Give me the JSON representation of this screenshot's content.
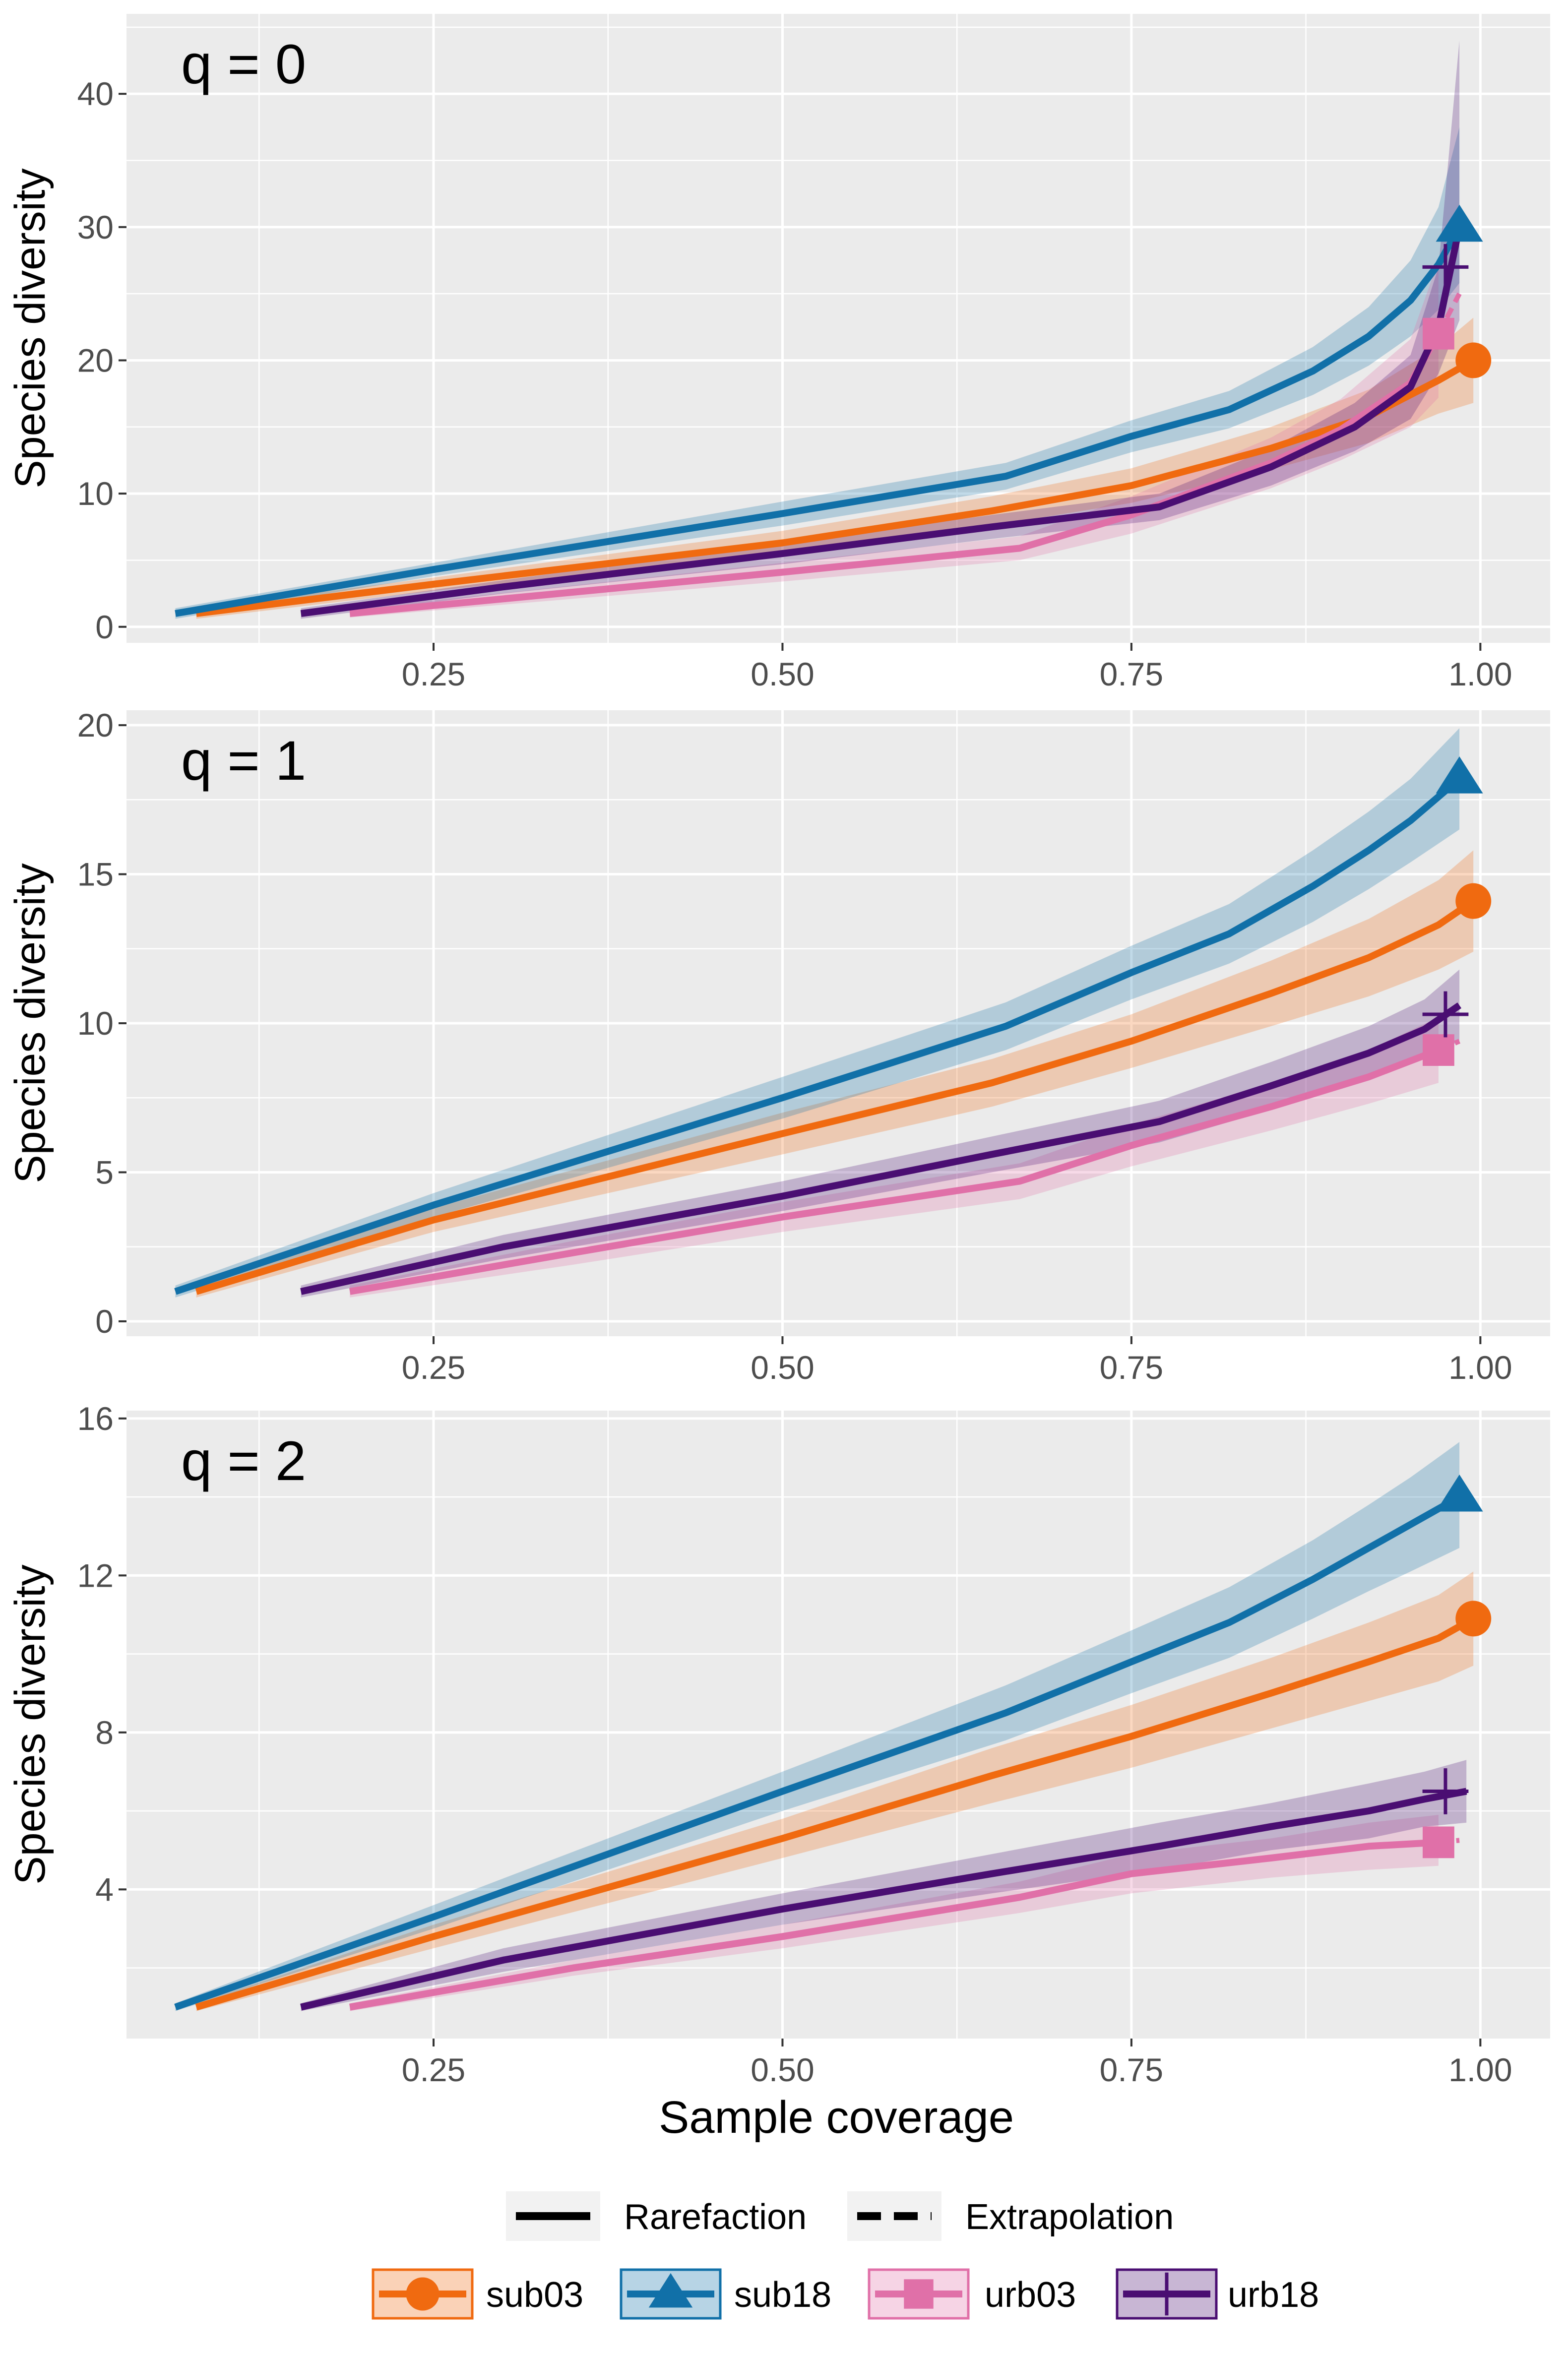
{
  "chart_data": {
    "type": "line",
    "x_label": "Sample coverage",
    "y_label": "Species diversity",
    "x_ticks": [
      "0.25",
      "0.50",
      "0.75",
      "1.00"
    ],
    "x_tick_values": [
      0.25,
      0.5,
      0.75,
      1.0
    ],
    "xlim": [
      0.03,
      1.05
    ],
    "legend_linetype": {
      "rarefaction": "Rarefaction",
      "extrapolation": "Extrapolation"
    },
    "legend_sites": [
      "sub03",
      "sub18",
      "urb03",
      "urb18"
    ],
    "colors": {
      "sub03": "#F06A10",
      "sub18": "#1170A8",
      "urb03": "#E070A8",
      "urb18": "#4A0E72"
    },
    "markers": {
      "sub03": "circle",
      "sub18": "triangle",
      "urb03": "square",
      "urb18": "plus"
    },
    "panels": [
      {
        "label": "q = 0",
        "ylim": [
          -1.2,
          46
        ],
        "y_ticks": [
          "0",
          "10",
          "20",
          "30",
          "40"
        ],
        "y_tick_values": [
          0,
          10,
          20,
          30,
          40
        ],
        "series": [
          {
            "name": "sub03",
            "x": [
              0.08,
              0.25,
              0.5,
              0.65,
              0.75,
              0.85,
              0.92,
              0.97,
              0.995
            ],
            "y": [
              1,
              3.2,
              6.3,
              8.7,
              10.6,
              13.4,
              15.8,
              18.5,
              20
            ],
            "lower": [
              0.6,
              2.7,
              5.4,
              7.6,
              9.3,
              11.8,
              13.8,
              16.0,
              16.8
            ],
            "upper": [
              1.4,
              3.7,
              7.2,
              9.8,
              11.9,
              15.0,
              17.8,
              21.0,
              23.2
            ],
            "ext_x": [],
            "ext_y": [],
            "point": [
              0.995,
              20
            ]
          },
          {
            "name": "sub18",
            "x": [
              0.065,
              0.25,
              0.5,
              0.66,
              0.75,
              0.82,
              0.88,
              0.92,
              0.95,
              0.97,
              0.985
            ],
            "y": [
              1,
              4.3,
              8.5,
              11.3,
              14.3,
              16.3,
              19.2,
              21.8,
              24.5,
              27.2,
              30
            ],
            "lower": [
              0.6,
              3.8,
              7.6,
              10.3,
              13.1,
              14.9,
              17.4,
              19.6,
              21.8,
              23.8,
              25.8
            ],
            "upper": [
              1.4,
              4.8,
              9.4,
              12.3,
              15.5,
              17.7,
              21.0,
              24.0,
              27.5,
              31.5,
              37.5
            ],
            "ext_x": [],
            "ext_y": [],
            "point": [
              0.985,
              30
            ]
          },
          {
            "name": "urb03",
            "x": [
              0.19,
              0.35,
              0.5,
              0.67,
              0.75,
              0.85,
              0.9,
              0.95,
              0.97
            ],
            "y": [
              1,
              2.6,
              4.1,
              5.9,
              8.4,
              12.3,
              14.8,
              18.3,
              22
            ],
            "lower": [
              0.7,
              2.1,
              3.4,
              5.0,
              7.0,
              10.4,
              12.5,
              15.0,
              17.2
            ],
            "upper": [
              1.3,
              3.1,
              4.8,
              6.8,
              9.8,
              14.2,
              17.1,
              21.6,
              27.5
            ],
            "ext_x": [
              0.97,
              0.985
            ],
            "ext_y": [
              22,
              25
            ],
            "point": [
              0.97,
              22
            ]
          },
          {
            "name": "urb18",
            "x": [
              0.155,
              0.3,
              0.5,
              0.65,
              0.77,
              0.85,
              0.91,
              0.95,
              0.97,
              0.985
            ],
            "y": [
              1,
              3.0,
              5.5,
              7.5,
              9,
              12,
              15,
              18,
              22.5,
              30
            ],
            "lower": [
              0.6,
              2.5,
              4.7,
              6.6,
              8.0,
              10.6,
              13.2,
              15.6,
              19.0,
              23.0
            ],
            "upper": [
              1.4,
              3.5,
              6.3,
              8.4,
              10.0,
              13.4,
              16.8,
              20.4,
              27.0,
              44.0
            ],
            "ext_x": [],
            "ext_y": [],
            "point": [
              0.975,
              27
            ]
          }
        ]
      },
      {
        "label": "q = 1",
        "ylim": [
          -0.5,
          20.5
        ],
        "y_ticks": [
          "0",
          "5",
          "10",
          "15",
          "20"
        ],
        "y_tick_values": [
          0,
          5,
          10,
          15,
          20
        ],
        "series": [
          {
            "name": "sub03",
            "x": [
              0.08,
              0.25,
              0.5,
              0.65,
              0.75,
              0.85,
              0.92,
              0.97,
              0.995
            ],
            "y": [
              1,
              3.4,
              6.3,
              8.0,
              9.4,
              11.0,
              12.2,
              13.3,
              14.1
            ],
            "lower": [
              0.8,
              3.0,
              5.6,
              7.2,
              8.5,
              9.9,
              10.9,
              11.8,
              12.4
            ],
            "upper": [
              1.2,
              3.8,
              7.0,
              8.8,
              10.3,
              12.1,
              13.5,
              14.8,
              15.8
            ],
            "ext_x": [],
            "ext_y": [],
            "point": [
              0.995,
              14.1
            ]
          },
          {
            "name": "sub18",
            "x": [
              0.065,
              0.25,
              0.5,
              0.66,
              0.75,
              0.82,
              0.88,
              0.92,
              0.95,
              0.985
            ],
            "y": [
              1,
              3.9,
              7.5,
              9.9,
              11.7,
              13.0,
              14.6,
              15.8,
              16.8,
              18.2
            ],
            "lower": [
              0.8,
              3.5,
              6.8,
              9.1,
              10.8,
              12.0,
              13.4,
              14.5,
              15.4,
              16.5
            ],
            "upper": [
              1.2,
              4.3,
              8.2,
              10.7,
              12.6,
              14.0,
              15.8,
              17.1,
              18.2,
              19.9
            ],
            "ext_x": [],
            "ext_y": [],
            "point": [
              0.985,
              18.2
            ]
          },
          {
            "name": "urb03",
            "x": [
              0.19,
              0.35,
              0.5,
              0.67,
              0.75,
              0.85,
              0.92,
              0.97
            ],
            "y": [
              1,
              2.3,
              3.5,
              4.7,
              5.9,
              7.2,
              8.2,
              9.1
            ],
            "lower": [
              0.8,
              1.9,
              3.0,
              4.1,
              5.2,
              6.4,
              7.3,
              8.0
            ],
            "upper": [
              1.2,
              2.7,
              4.0,
              5.3,
              6.6,
              8.0,
              9.1,
              10.2
            ],
            "ext_x": [
              0.97,
              0.985
            ],
            "ext_y": [
              9.1,
              9.4
            ],
            "point": [
              0.97,
              9.1
            ]
          },
          {
            "name": "urb18",
            "x": [
              0.155,
              0.3,
              0.5,
              0.65,
              0.77,
              0.85,
              0.92,
              0.96,
              0.985
            ],
            "y": [
              1,
              2.5,
              4.2,
              5.6,
              6.7,
              7.9,
              9.0,
              9.8,
              10.6
            ],
            "lower": [
              0.8,
              2.1,
              3.7,
              5.0,
              6.0,
              7.1,
              8.1,
              8.8,
              9.4
            ],
            "upper": [
              1.2,
              2.9,
              4.7,
              6.2,
              7.4,
              8.7,
              9.9,
              10.8,
              11.8
            ],
            "ext_x": [],
            "ext_y": [],
            "point": [
              0.975,
              10.3
            ]
          }
        ]
      },
      {
        "label": "q = 2",
        "ylim": [
          0.2,
          16.2
        ],
        "y_ticks": [
          "4",
          "8",
          "12",
          "16"
        ],
        "y_tick_values": [
          4,
          8,
          12,
          16
        ],
        "series": [
          {
            "name": "sub03",
            "x": [
              0.08,
              0.25,
              0.5,
              0.65,
              0.75,
              0.85,
              0.92,
              0.97,
              0.995
            ],
            "y": [
              1,
              2.8,
              5.3,
              6.9,
              7.9,
              9.0,
              9.8,
              10.4,
              10.9
            ],
            "lower": [
              0.9,
              2.5,
              4.8,
              6.2,
              7.1,
              8.1,
              8.8,
              9.3,
              9.7
            ],
            "upper": [
              1.1,
              3.1,
              5.8,
              7.6,
              8.7,
              9.9,
              10.8,
              11.5,
              12.1
            ],
            "ext_x": [],
            "ext_y": [],
            "point": [
              0.995,
              10.9
            ]
          },
          {
            "name": "sub18",
            "x": [
              0.065,
              0.25,
              0.5,
              0.66,
              0.75,
              0.82,
              0.88,
              0.92,
              0.95,
              0.985
            ],
            "y": [
              1,
              3.3,
              6.5,
              8.5,
              9.8,
              10.8,
              11.9,
              12.7,
              13.3,
              14
            ],
            "lower": [
              0.9,
              3.0,
              6.0,
              7.8,
              9.0,
              9.9,
              10.9,
              11.6,
              12.1,
              12.7
            ],
            "upper": [
              1.1,
              3.6,
              7.0,
              9.2,
              10.6,
              11.7,
              12.9,
              13.8,
              14.5,
              15.4
            ],
            "ext_x": [],
            "ext_y": [],
            "point": [
              0.985,
              14
            ]
          },
          {
            "name": "urb03",
            "x": [
              0.19,
              0.35,
              0.5,
              0.67,
              0.75,
              0.85,
              0.92,
              0.97
            ],
            "y": [
              1,
              2.0,
              2.8,
              3.8,
              4.4,
              4.8,
              5.1,
              5.2
            ],
            "lower": [
              0.9,
              1.8,
              2.5,
              3.4,
              3.9,
              4.3,
              4.5,
              4.6
            ],
            "upper": [
              1.1,
              2.2,
              3.1,
              4.2,
              4.9,
              5.3,
              5.7,
              5.9
            ],
            "ext_x": [
              0.97,
              0.985
            ],
            "ext_y": [
              5.2,
              5.25
            ],
            "point": [
              0.97,
              5.2
            ]
          },
          {
            "name": "urb18",
            "x": [
              0.155,
              0.3,
              0.5,
              0.65,
              0.77,
              0.85,
              0.92,
              0.96,
              0.99
            ],
            "y": [
              1,
              2.2,
              3.5,
              4.4,
              5.1,
              5.6,
              6.0,
              6.3,
              6.5
            ],
            "lower": [
              0.9,
              1.9,
              3.1,
              3.9,
              4.5,
              5.0,
              5.3,
              5.6,
              5.7
            ],
            "upper": [
              1.1,
              2.5,
              3.9,
              4.9,
              5.7,
              6.2,
              6.7,
              7.0,
              7.3
            ],
            "ext_x": [],
            "ext_y": [],
            "point": [
              0.975,
              6.5
            ]
          }
        ]
      }
    ]
  }
}
